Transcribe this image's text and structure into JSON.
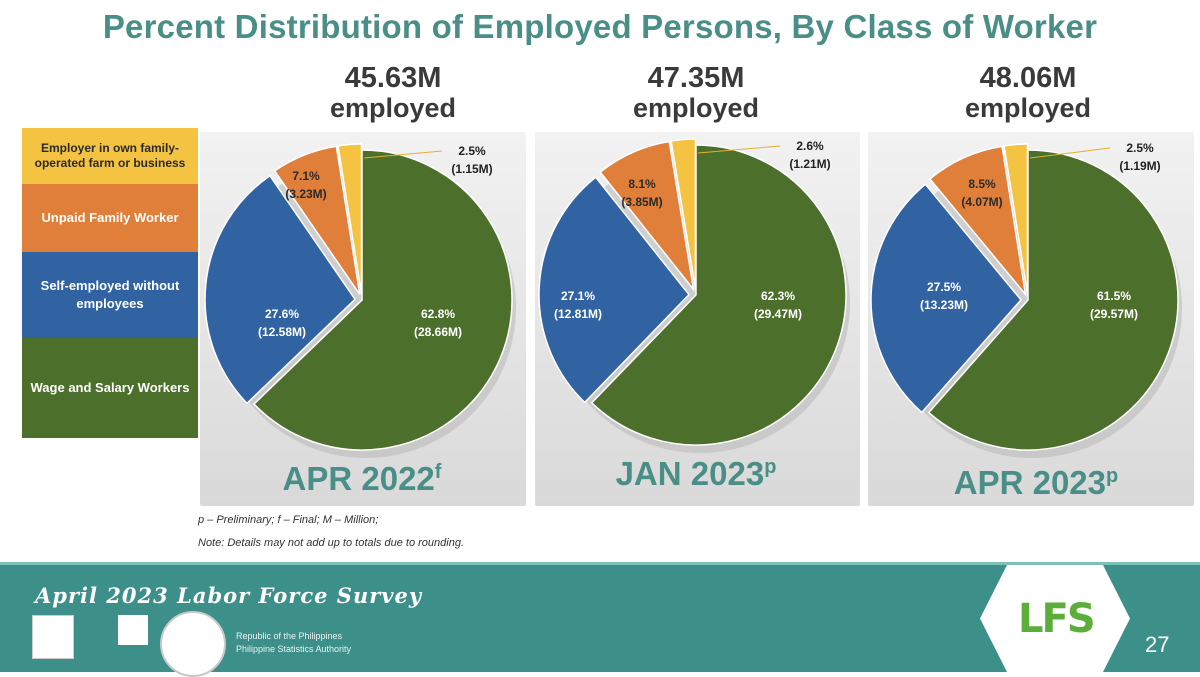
{
  "title": "Percent Distribution of Employed Persons, By Class of Worker",
  "legend": [
    {
      "key": "employer",
      "label": "Employer in own family-operated farm or business",
      "color": "#f5c342"
    },
    {
      "key": "unpaid",
      "label": "Unpaid Family Worker",
      "color": "#e07f39"
    },
    {
      "key": "self",
      "label": "Self-employed without employees",
      "color": "#3162a2"
    },
    {
      "key": "wage",
      "label": "Wage and Salary Workers",
      "color": "#4d6f2c"
    }
  ],
  "chart_data": [
    {
      "type": "pie",
      "title": "APR 2022",
      "title_suffix": "f",
      "total_value": "45.63M",
      "total_label": "employed",
      "categories": [
        "Wage and Salary Workers",
        "Self-employed without employees",
        "Unpaid Family Worker",
        "Employer in own family-operated farm or business"
      ],
      "values": [
        62.8,
        27.6,
        7.1,
        2.5
      ],
      "value_labels": [
        "62.8%",
        "27.6%",
        "7.1%",
        "2.5%"
      ],
      "counts": [
        "(28.66M)",
        "(12.58M)",
        "(3.23M)",
        "(1.15M)"
      ]
    },
    {
      "type": "pie",
      "title": "JAN 2023",
      "title_suffix": "p",
      "total_value": "47.35M",
      "total_label": "employed",
      "categories": [
        "Wage and Salary Workers",
        "Self-employed without employees",
        "Unpaid Family Worker",
        "Employer in own family-operated farm or business"
      ],
      "values": [
        62.3,
        27.1,
        8.1,
        2.6
      ],
      "value_labels": [
        "62.3%",
        "27.1%",
        "8.1%",
        "2.6%"
      ],
      "counts": [
        "(29.47M)",
        "(12.81M)",
        "(3.85M)",
        "(1.21M)"
      ]
    },
    {
      "type": "pie",
      "title": "APR 2023",
      "title_suffix": "p",
      "total_value": "48.06M",
      "total_label": "employed",
      "categories": [
        "Wage and Salary Workers",
        "Self-employed without employees",
        "Unpaid Family Worker",
        "Employer in own family-operated farm or business"
      ],
      "values": [
        61.5,
        27.5,
        8.5,
        2.5
      ],
      "value_labels": [
        "61.5%",
        "27.5%",
        "8.5%",
        "2.5%"
      ],
      "counts": [
        "(29.57M)",
        "(13.23M)",
        "(4.07M)",
        "(1.19M)"
      ]
    }
  ],
  "notes": {
    "line1": "p – Preliminary; f – Final; M – Million;",
    "line2": "Note: Details may not add up to totals  due to rounding."
  },
  "footer": {
    "survey_title": "April 2023 Labor Force Survey",
    "org_line1": "Republic of the Philippines",
    "org_line2": "Philippine Statistics Authority",
    "logo_text": "LFS",
    "page_number": "27"
  }
}
